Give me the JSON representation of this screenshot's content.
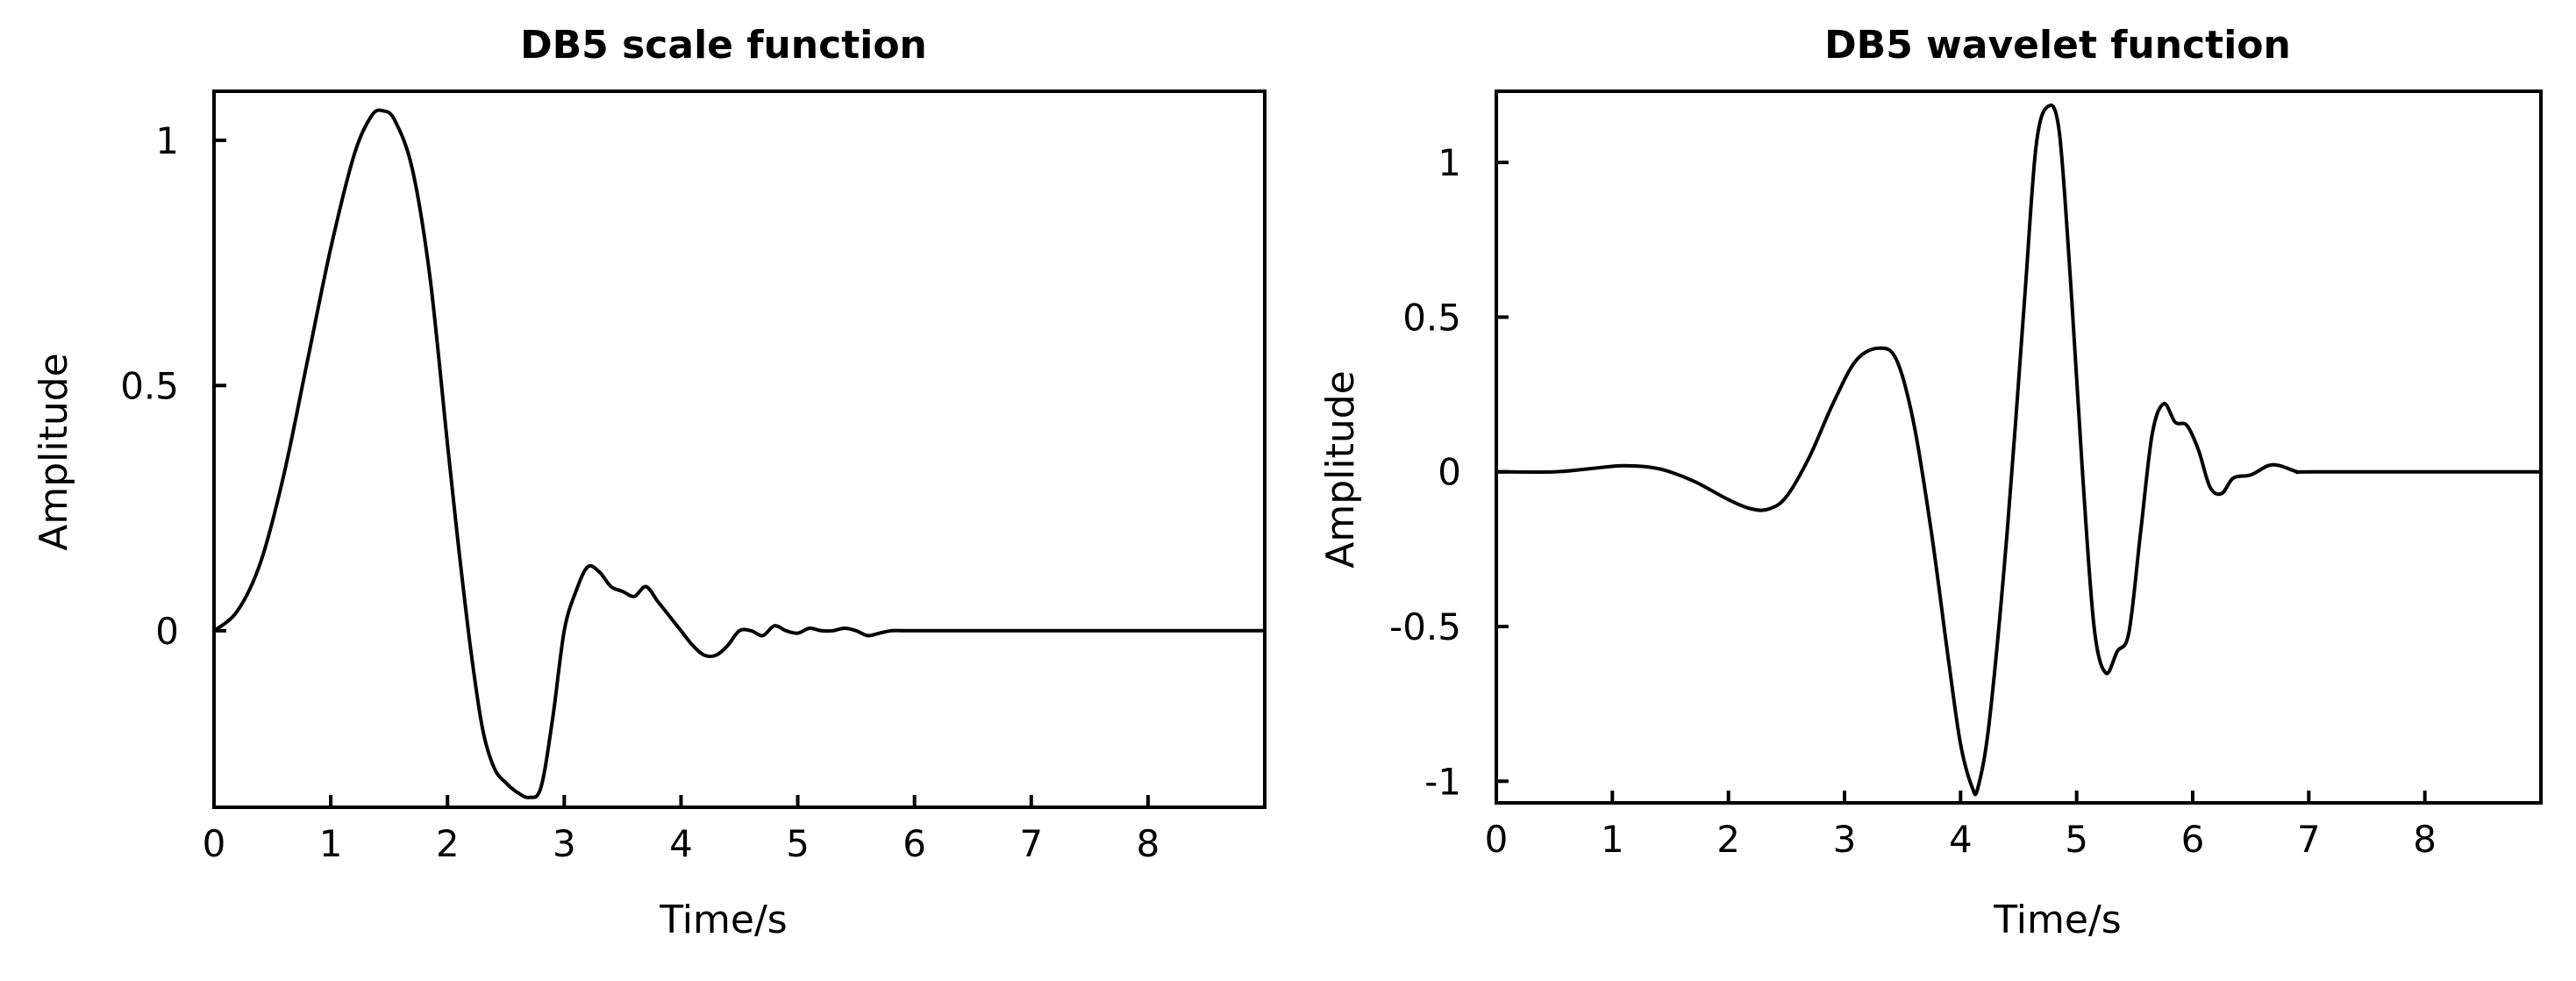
{
  "chart_data": [
    {
      "type": "line",
      "title": "DB5 scale function",
      "xlabel": "Time/s",
      "ylabel": "Amplitude",
      "xlim": [
        0,
        9
      ],
      "ylim": [
        -0.36,
        1.1
      ],
      "xticks": [
        0,
        1,
        2,
        3,
        4,
        5,
        6,
        7,
        8
      ],
      "yticks": [
        0,
        0.5,
        1
      ],
      "ytick_labels": [
        "0",
        "0.5",
        "1"
      ],
      "grid": false,
      "series": [
        {
          "x": [
            0,
            0.2,
            0.4,
            0.6,
            0.8,
            1.0,
            1.2,
            1.35,
            1.45,
            1.55,
            1.7,
            1.85,
            2.0,
            2.1,
            2.2,
            2.3,
            2.4,
            2.5,
            2.6,
            2.7,
            2.8,
            2.9,
            3.0,
            3.1,
            3.2,
            3.3,
            3.4,
            3.5,
            3.6,
            3.7,
            3.8,
            3.9,
            4.0,
            4.1,
            4.2,
            4.3,
            4.4,
            4.5,
            4.6,
            4.7,
            4.8,
            4.9,
            5.0,
            5.1,
            5.2,
            5.3,
            5.4,
            5.5,
            5.6,
            5.7,
            5.8,
            5.9,
            6.0,
            6.1,
            6.5,
            7.0,
            8.0,
            9.0
          ],
          "y": [
            0.0,
            0.04,
            0.14,
            0.32,
            0.55,
            0.78,
            0.97,
            1.05,
            1.06,
            1.04,
            0.94,
            0.72,
            0.38,
            0.16,
            -0.04,
            -0.2,
            -0.28,
            -0.31,
            -0.33,
            -0.34,
            -0.32,
            -0.18,
            0.0,
            0.08,
            0.13,
            0.12,
            0.09,
            0.08,
            0.07,
            0.09,
            0.06,
            0.03,
            0.0,
            -0.03,
            -0.05,
            -0.05,
            -0.03,
            0.0,
            0.0,
            -0.01,
            0.01,
            0.0,
            -0.005,
            0.005,
            0.0,
            0.0,
            0.005,
            0.0,
            -0.01,
            -0.005,
            0.0,
            0.0,
            0.0,
            0.0,
            0.0,
            0.0,
            0.0,
            0.0
          ]
        }
      ]
    },
    {
      "type": "line",
      "title": "DB5 wavelet function",
      "xlabel": "Time/s",
      "ylabel": "Amplitude",
      "xlim": [
        0,
        9
      ],
      "ylim": [
        -1.07,
        1.23
      ],
      "xticks": [
        0,
        1,
        2,
        3,
        4,
        5,
        6,
        7,
        8
      ],
      "yticks": [
        -1,
        -0.5,
        0,
        0.5,
        1
      ],
      "ytick_labels": [
        "-1",
        "-0.5",
        "0",
        "0.5",
        "1"
      ],
      "grid": false,
      "series": [
        {
          "x": [
            0,
            0.5,
            0.8,
            1.1,
            1.4,
            1.7,
            2.0,
            2.2,
            2.35,
            2.5,
            2.7,
            2.9,
            3.1,
            3.3,
            3.45,
            3.6,
            3.75,
            3.9,
            4.0,
            4.1,
            4.15,
            4.25,
            4.4,
            4.55,
            4.65,
            4.75,
            4.85,
            4.95,
            5.05,
            5.15,
            5.25,
            5.35,
            5.45,
            5.55,
            5.65,
            5.75,
            5.85,
            5.95,
            6.05,
            6.15,
            6.25,
            6.35,
            6.5,
            6.65,
            6.75,
            6.9,
            7.0,
            8.0,
            9.0
          ],
          "y": [
            0.0,
            0.0,
            0.01,
            0.02,
            0.01,
            -0.03,
            -0.09,
            -0.12,
            -0.12,
            -0.08,
            0.05,
            0.22,
            0.36,
            0.4,
            0.36,
            0.15,
            -0.2,
            -0.62,
            -0.88,
            -1.02,
            -1.02,
            -0.8,
            -0.2,
            0.55,
            1.05,
            1.18,
            1.1,
            0.6,
            0.0,
            -0.5,
            -0.65,
            -0.58,
            -0.52,
            -0.2,
            0.12,
            0.22,
            0.16,
            0.15,
            0.07,
            -0.05,
            -0.07,
            -0.02,
            -0.01,
            0.02,
            0.02,
            0.0,
            0.0,
            0.0,
            0.0
          ]
        }
      ]
    }
  ]
}
